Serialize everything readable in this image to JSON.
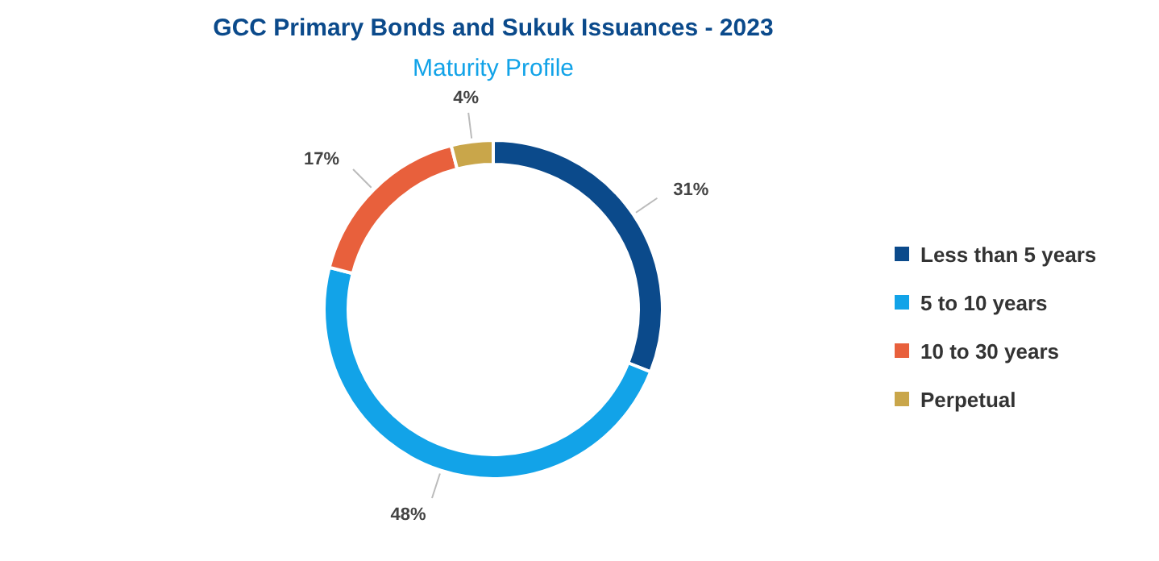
{
  "chart_data": {
    "type": "donut",
    "title": "GCC Primary Bonds and Sukuk Issuances - 2023",
    "subtitle": "Maturity Profile",
    "categories": [
      "Less than 5 years",
      "5 to 10 years",
      "10 to 30 years",
      "Perpetual"
    ],
    "values": [
      31,
      48,
      17,
      4
    ],
    "colors": [
      "#0b4a8b",
      "#12a3e8",
      "#e8603c",
      "#c9a64a"
    ],
    "value_labels": [
      "31%",
      "48%",
      "17%",
      "4%"
    ],
    "legend": "right"
  }
}
